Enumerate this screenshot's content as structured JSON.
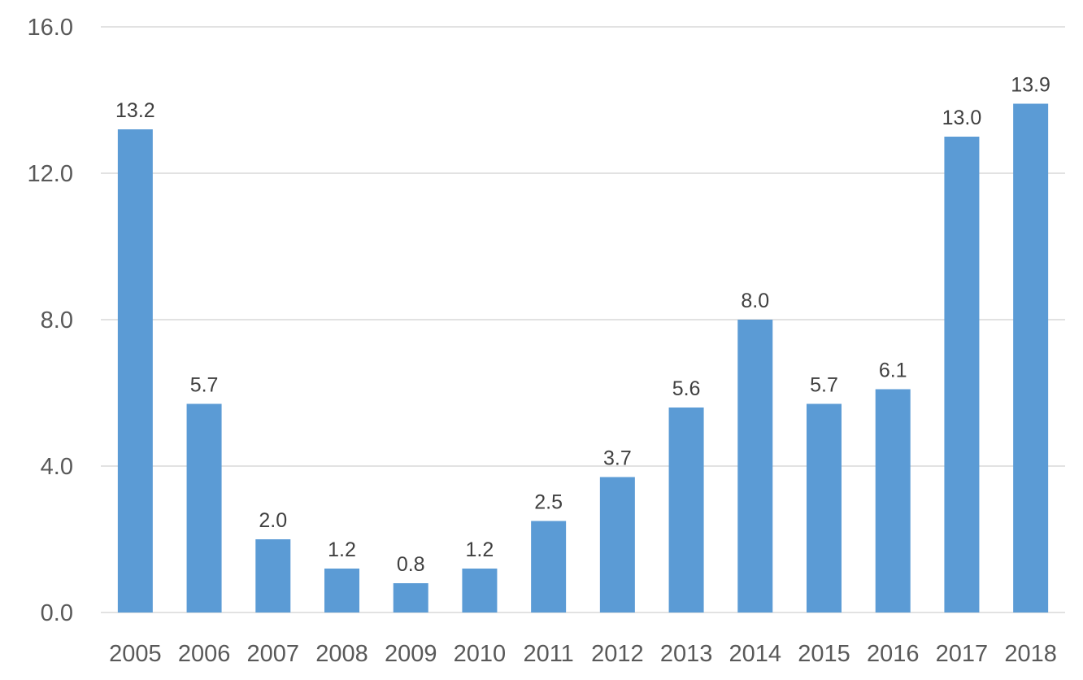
{
  "chart_data": {
    "type": "bar",
    "title": "",
    "xlabel": "",
    "ylabel": "",
    "categories": [
      "2005",
      "2006",
      "2007",
      "2008",
      "2009",
      "2010",
      "2011",
      "2012",
      "2013",
      "2014",
      "2015",
      "2016",
      "2017",
      "2018"
    ],
    "values": [
      13.2,
      5.7,
      2.0,
      1.2,
      0.8,
      1.2,
      2.5,
      3.7,
      5.6,
      8.0,
      5.7,
      6.1,
      13.0,
      13.9
    ],
    "value_labels": [
      "13.2",
      "5.7",
      "2.0",
      "1.2",
      "0.8",
      "1.2",
      "2.5",
      "3.7",
      "5.6",
      "8.0",
      "5.7",
      "6.1",
      "13.0",
      "13.9"
    ],
    "ylim": [
      0,
      16
    ],
    "yticks": [
      0,
      4,
      8,
      12,
      16
    ],
    "ytick_labels": [
      "0.0",
      "4.0",
      "8.0",
      "12.0",
      "16.0"
    ],
    "grid": "horizontal",
    "legend": "none",
    "bar_color": "#5b9bd5"
  }
}
